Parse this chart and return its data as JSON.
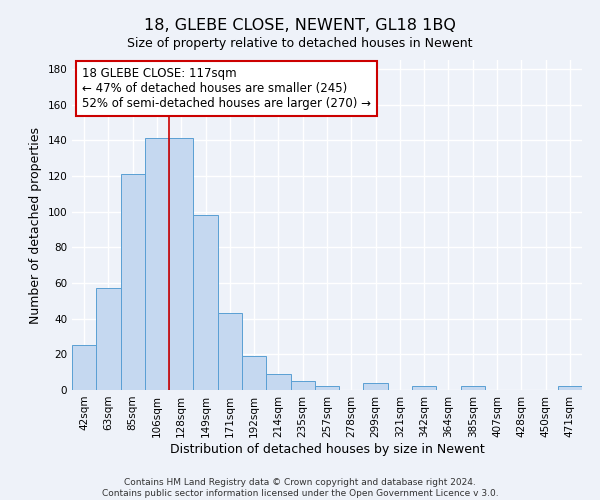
{
  "title": "18, GLEBE CLOSE, NEWENT, GL18 1BQ",
  "subtitle": "Size of property relative to detached houses in Newent",
  "xlabel": "Distribution of detached houses by size in Newent",
  "ylabel": "Number of detached properties",
  "categories": [
    "42sqm",
    "63sqm",
    "85sqm",
    "106sqm",
    "128sqm",
    "149sqm",
    "171sqm",
    "192sqm",
    "214sqm",
    "235sqm",
    "257sqm",
    "278sqm",
    "299sqm",
    "321sqm",
    "342sqm",
    "364sqm",
    "385sqm",
    "407sqm",
    "428sqm",
    "450sqm",
    "471sqm"
  ],
  "values": [
    25,
    57,
    121,
    141,
    141,
    98,
    43,
    19,
    9,
    5,
    2,
    0,
    4,
    0,
    2,
    0,
    2,
    0,
    0,
    0,
    2
  ],
  "bar_color": "#c5d8f0",
  "bar_edge_color": "#5a9fd4",
  "vline_x_index": 3.5,
  "vline_color": "#cc0000",
  "annotation_text": "18 GLEBE CLOSE: 117sqm\n← 47% of detached houses are smaller (245)\n52% of semi-detached houses are larger (270) →",
  "annotation_box_color": "#ffffff",
  "annotation_box_edge_color": "#cc0000",
  "ylim": [
    0,
    185
  ],
  "yticks": [
    0,
    20,
    40,
    60,
    80,
    100,
    120,
    140,
    160,
    180
  ],
  "footer_line1": "Contains HM Land Registry data © Crown copyright and database right 2024.",
  "footer_line2": "Contains public sector information licensed under the Open Government Licence v 3.0.",
  "background_color": "#eef2f9",
  "grid_color": "#ffffff",
  "title_fontsize": 11.5,
  "subtitle_fontsize": 9,
  "axis_label_fontsize": 9,
  "tick_fontsize": 7.5,
  "annotation_fontsize": 8.5,
  "footer_fontsize": 6.5
}
